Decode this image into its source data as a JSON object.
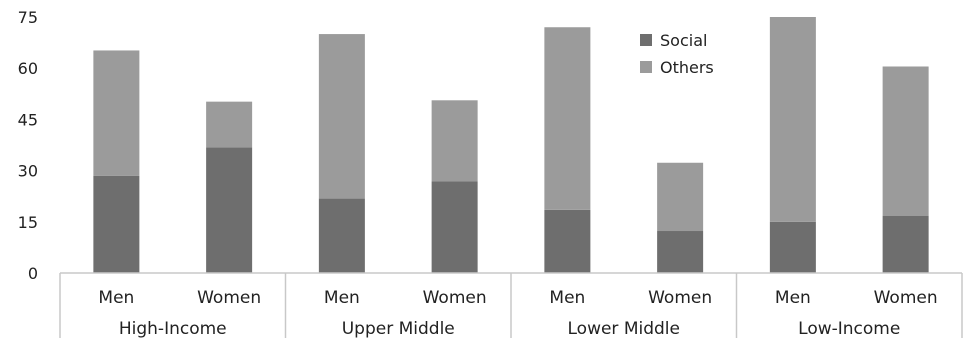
{
  "chart_data": {
    "type": "bar",
    "stacked": true,
    "groups": [
      {
        "label": "High-Income",
        "categories": [
          "Men",
          "Women"
        ]
      },
      {
        "label": "Upper Middle",
        "categories": [
          "Men",
          "Women"
        ]
      },
      {
        "label": "Lower Middle",
        "categories": [
          "Men",
          "Women"
        ]
      },
      {
        "label": "Low-Income",
        "categories": [
          "Men",
          "Women"
        ]
      }
    ],
    "categories": [
      "Men",
      "Women",
      "Men",
      "Women",
      "Men",
      "Women",
      "Men",
      "Women"
    ],
    "series": [
      {
        "name": "Social",
        "color": "#6e6e6e",
        "values": [
          28.5,
          36.8,
          21.8,
          26.8,
          18.5,
          12.3,
          15.0,
          16.8
        ]
      },
      {
        "name": "Others",
        "color": "#9b9b9b",
        "values": [
          36.7,
          13.4,
          48.2,
          23.8,
          53.5,
          20.0,
          60.0,
          43.7
        ]
      }
    ],
    "yticks": [
      0,
      15,
      30,
      45,
      60,
      75
    ],
    "ylim": [
      0,
      75
    ],
    "title": "",
    "xlabel": "",
    "ylabel": "",
    "grid": false,
    "legend_position": "top-right"
  }
}
